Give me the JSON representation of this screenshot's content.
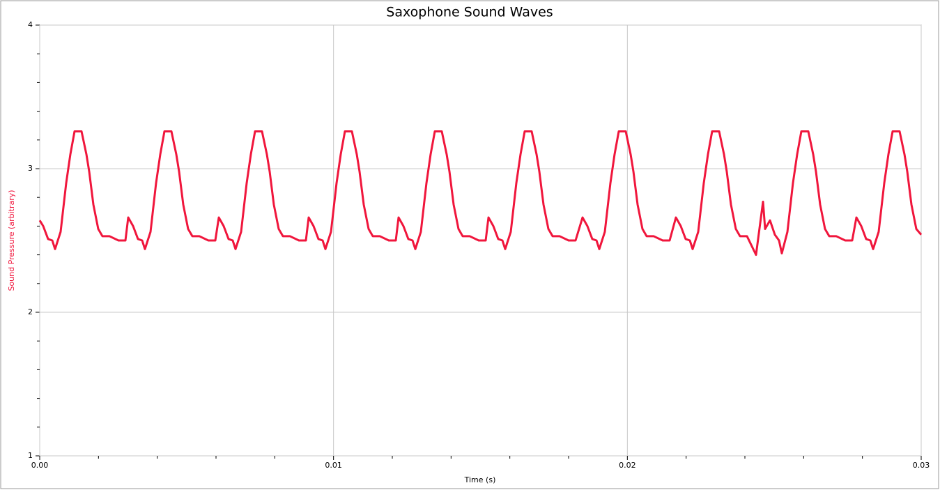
{
  "chart_data": {
    "type": "line",
    "title": "Saxophone Sound Waves",
    "xlabel": "Time (s)",
    "ylabel": "Sound Pressure (arbitrary)",
    "xlim": [
      0,
      0.03
    ],
    "ylim": [
      1,
      4
    ],
    "xticks": [
      {
        "value": 0,
        "label": "0.00"
      },
      {
        "value": 0.01,
        "label": "0.01"
      },
      {
        "value": 0.02,
        "label": "0.02"
      },
      {
        "value": 0.03,
        "label": "0.03"
      }
    ],
    "yticks": [
      1,
      2,
      3,
      4
    ],
    "xminorticks": [
      0.002,
      0.004,
      0.006,
      0.008,
      0.012,
      0.014,
      0.016,
      0.018,
      0.022,
      0.024,
      0.026,
      0.028
    ],
    "yminorticks": [
      1.2,
      1.4,
      1.6,
      1.8,
      2.2,
      2.4,
      2.6,
      2.8,
      3.2,
      3.4,
      3.6,
      3.8
    ],
    "grid": true,
    "x": [
      0,
      0.000119,
      0.000285,
      0.000427,
      0.000522,
      0.000711,
      0.000901,
      0.001043,
      0.001186,
      0.001423,
      0.001589,
      0.001684,
      0.001826,
      0.001992,
      0.002134,
      0.002372,
      0.00268,
      0.002917,
      0.003012,
      0.003178,
      0.003344,
      0.003486,
      0.003581,
      0.003771,
      0.00396,
      0.004103,
      0.004245,
      0.004482,
      0.004648,
      0.004743,
      0.004885,
      0.005051,
      0.005194,
      0.005431,
      0.005739,
      0.005976,
      0.006095,
      0.006261,
      0.006427,
      0.006569,
      0.006664,
      0.006854,
      0.007044,
      0.007186,
      0.007328,
      0.007565,
      0.007731,
      0.007826,
      0.007968,
      0.008134,
      0.008277,
      0.008514,
      0.008822,
      0.009059,
      0.009154,
      0.00932,
      0.009486,
      0.009629,
      0.009723,
      0.009913,
      0.010103,
      0.010245,
      0.010387,
      0.010625,
      0.010791,
      0.010885,
      0.011028,
      0.011194,
      0.011336,
      0.011573,
      0.011881,
      0.012119,
      0.012213,
      0.012379,
      0.012545,
      0.012688,
      0.012783,
      0.012972,
      0.013162,
      0.013304,
      0.013447,
      0.013684,
      0.01385,
      0.013945,
      0.014087,
      0.014253,
      0.014395,
      0.014632,
      0.014941,
      0.015178,
      0.015273,
      0.015439,
      0.015605,
      0.015747,
      0.015842,
      0.016032,
      0.016221,
      0.016364,
      0.016506,
      0.016743,
      0.016909,
      0.017004,
      0.017146,
      0.017312,
      0.017455,
      0.017692,
      0.018,
      0.018237,
      0.018474,
      0.01864,
      0.018806,
      0.018949,
      0.019044,
      0.019233,
      0.019423,
      0.019565,
      0.019708,
      0.019945,
      0.020111,
      0.020206,
      0.020348,
      0.020514,
      0.020656,
      0.020893,
      0.021202,
      0.021439,
      0.021652,
      0.021818,
      0.021984,
      0.022127,
      0.022221,
      0.022411,
      0.022601,
      0.022743,
      0.022885,
      0.023123,
      0.023289,
      0.023383,
      0.023526,
      0.023692,
      0.023834,
      0.024071,
      0.024379,
      0.024617,
      0.024688,
      0.024854,
      0.02502,
      0.025162,
      0.025257,
      0.025447,
      0.025636,
      0.025779,
      0.025921,
      0.026158,
      0.026324,
      0.026419,
      0.026561,
      0.026727,
      0.02687,
      0.027107,
      0.027415,
      0.027652,
      0.027795,
      0.027961,
      0.028127,
      0.028269,
      0.028364,
      0.028553,
      0.028743,
      0.028885,
      0.029028,
      0.029265,
      0.029431,
      0.029526,
      0.029668,
      0.029834,
      0.03
    ],
    "series": [
      {
        "name": "Sound Pressure",
        "color": "#f0163c",
        "values": [
          2.64,
          2.6,
          2.51,
          2.5,
          2.44,
          2.56,
          2.9,
          3.1,
          3.26,
          3.26,
          3.1,
          2.98,
          2.75,
          2.58,
          2.53,
          2.53,
          2.5,
          2.5,
          2.66,
          2.6,
          2.51,
          2.5,
          2.44,
          2.56,
          2.9,
          3.1,
          3.26,
          3.26,
          3.1,
          2.98,
          2.75,
          2.58,
          2.53,
          2.53,
          2.5,
          2.5,
          2.66,
          2.6,
          2.51,
          2.5,
          2.44,
          2.56,
          2.9,
          3.1,
          3.26,
          3.26,
          3.1,
          2.98,
          2.75,
          2.58,
          2.53,
          2.53,
          2.5,
          2.5,
          2.66,
          2.6,
          2.51,
          2.5,
          2.44,
          2.56,
          2.9,
          3.1,
          3.26,
          3.26,
          3.1,
          2.98,
          2.75,
          2.58,
          2.53,
          2.53,
          2.5,
          2.5,
          2.66,
          2.6,
          2.51,
          2.5,
          2.44,
          2.56,
          2.9,
          3.1,
          3.26,
          3.26,
          3.1,
          2.98,
          2.75,
          2.58,
          2.53,
          2.53,
          2.5,
          2.5,
          2.66,
          2.6,
          2.51,
          2.5,
          2.44,
          2.56,
          2.9,
          3.1,
          3.26,
          3.26,
          3.1,
          2.98,
          2.75,
          2.58,
          2.53,
          2.53,
          2.5,
          2.5,
          2.66,
          2.6,
          2.51,
          2.5,
          2.44,
          2.56,
          2.9,
          3.1,
          3.26,
          3.26,
          3.1,
          2.98,
          2.75,
          2.58,
          2.53,
          2.53,
          2.5,
          2.5,
          2.66,
          2.6,
          2.51,
          2.5,
          2.44,
          2.56,
          2.9,
          3.1,
          3.26,
          3.26,
          3.1,
          2.98,
          2.75,
          2.58,
          2.53,
          2.53,
          2.4,
          2.77,
          2.58,
          2.64,
          2.54,
          2.5,
          2.41,
          2.56,
          2.9,
          3.1,
          3.26,
          3.26,
          3.1,
          2.98,
          2.75,
          2.58,
          2.53,
          2.53,
          2.5,
          2.5,
          2.66,
          2.6,
          2.51,
          2.5,
          2.44,
          2.56,
          2.9,
          3.1,
          3.26,
          3.26,
          3.1,
          2.98,
          2.75,
          2.58,
          2.54
        ]
      }
    ]
  }
}
